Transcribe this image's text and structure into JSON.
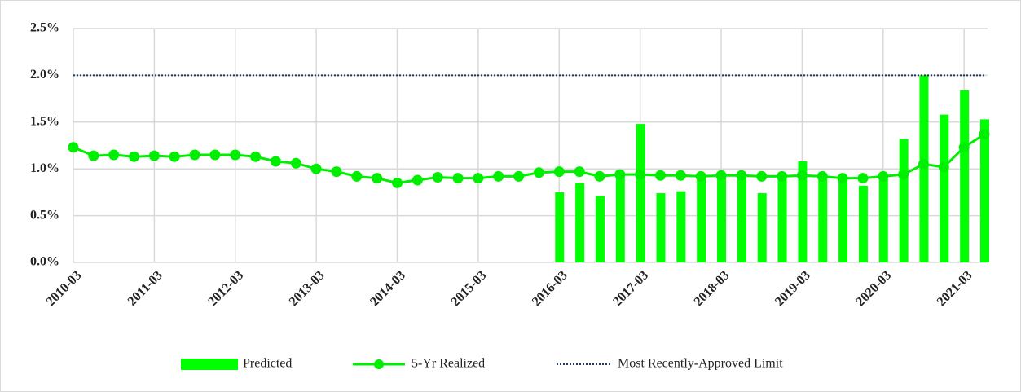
{
  "chart_data": {
    "type": "bar-line",
    "categories": [
      "2010-03",
      null,
      null,
      null,
      "2011-03",
      null,
      null,
      null,
      "2012-03",
      null,
      null,
      null,
      "2013-03",
      null,
      null,
      null,
      "2014-03",
      null,
      null,
      null,
      "2015-03",
      null,
      null,
      null,
      "2016-03",
      null,
      null,
      null,
      "2017-03",
      null,
      null,
      null,
      "2018-03",
      null,
      null,
      null,
      "2019-03",
      null,
      null,
      null,
      "2020-03",
      null,
      null,
      null,
      "2021-03",
      null
    ],
    "series": [
      {
        "name": "Predicted",
        "type": "bar",
        "color": "#00ff00",
        "values": [
          null,
          null,
          null,
          null,
          null,
          null,
          null,
          null,
          null,
          null,
          null,
          null,
          null,
          null,
          null,
          null,
          null,
          null,
          null,
          null,
          null,
          null,
          null,
          null,
          0.75,
          0.85,
          0.71,
          0.95,
          1.48,
          0.74,
          0.76,
          0.92,
          0.93,
          0.93,
          0.74,
          0.92,
          1.08,
          0.92,
          0.9,
          0.82,
          0.92,
          1.32,
          2.0,
          1.58,
          1.84,
          1.53
        ]
      },
      {
        "name": "5-Yr Realized",
        "type": "line",
        "color": "#00ee00",
        "values": [
          1.23,
          1.14,
          1.15,
          1.13,
          1.14,
          1.13,
          1.15,
          1.15,
          1.15,
          1.13,
          1.08,
          1.06,
          1.0,
          0.97,
          0.92,
          0.9,
          0.85,
          0.88,
          0.91,
          0.9,
          0.9,
          0.92,
          0.92,
          0.96,
          0.97,
          0.97,
          0.92,
          0.94,
          0.94,
          0.93,
          0.93,
          0.92,
          0.93,
          0.93,
          0.92,
          0.92,
          0.93,
          0.92,
          0.9,
          0.9,
          0.92,
          0.94,
          1.05,
          1.02,
          1.23,
          1.37
        ]
      },
      {
        "name": "Most Recently-Approved Limit",
        "type": "dotted-line",
        "color": "#1f3864",
        "values": [
          2.0,
          2.0,
          2.0,
          2.0,
          2.0,
          2.0,
          2.0,
          2.0,
          2.0,
          2.0,
          2.0,
          2.0,
          2.0,
          2.0,
          2.0,
          2.0,
          2.0,
          2.0,
          2.0,
          2.0,
          2.0,
          2.0,
          2.0,
          2.0,
          2.0,
          2.0,
          2.0,
          2.0,
          2.0,
          2.0,
          2.0,
          2.0,
          2.0,
          2.0,
          2.0,
          2.0,
          2.0,
          2.0,
          2.0,
          2.0,
          2.0,
          2.0,
          2.0,
          2.0,
          2.0,
          2.0
        ]
      }
    ],
    "ylim": [
      0,
      2.5
    ],
    "yticks": [
      {
        "value": 0,
        "label": "0.0%"
      },
      {
        "value": 0.5,
        "label": "0.5%"
      },
      {
        "value": 1.0,
        "label": "1.0%"
      },
      {
        "value": 1.5,
        "label": "1.5%"
      },
      {
        "value": 2.0,
        "label": "2.0%"
      },
      {
        "value": 2.5,
        "label": "2.5%"
      }
    ],
    "grid": true,
    "legend": "bottom"
  }
}
